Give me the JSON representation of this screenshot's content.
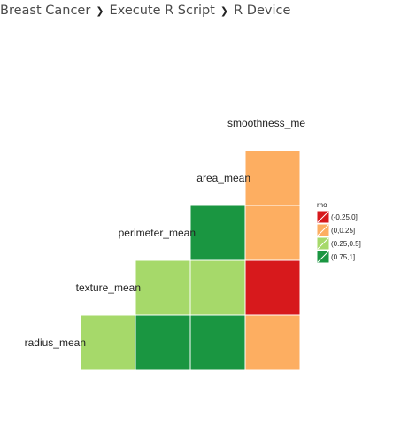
{
  "breadcrumb": {
    "items": [
      "Breast Cancer",
      "Execute R Script",
      "R Device"
    ],
    "separator": "❯"
  },
  "chart_data": {
    "type": "heatmap",
    "variables": [
      "radius_mean",
      "texture_mean",
      "perimeter_mean",
      "area_mean",
      "smoothness_me"
    ],
    "legend": {
      "title": "rho",
      "entries": [
        {
          "label": "(-0.25,0]",
          "color": "#d7191c"
        },
        {
          "label": "(0,0.25]",
          "color": "#fdae61"
        },
        {
          "label": "(0.25,0.5]",
          "color": "#a6d96a"
        },
        {
          "label": "(0.75,1]",
          "color": "#1a9641"
        }
      ]
    },
    "cells": [
      {
        "row": "radius_mean",
        "col": "texture_mean",
        "bin": "(0.25,0.5]"
      },
      {
        "row": "radius_mean",
        "col": "perimeter_mean",
        "bin": "(0.75,1]"
      },
      {
        "row": "radius_mean",
        "col": "area_mean",
        "bin": "(0.75,1]"
      },
      {
        "row": "radius_mean",
        "col": "smoothness_me",
        "bin": "(0,0.25]"
      },
      {
        "row": "texture_mean",
        "col": "perimeter_mean",
        "bin": "(0.25,0.5]"
      },
      {
        "row": "texture_mean",
        "col": "area_mean",
        "bin": "(0.25,0.5]"
      },
      {
        "row": "texture_mean",
        "col": "smoothness_me",
        "bin": "(-0.25,0]"
      },
      {
        "row": "perimeter_mean",
        "col": "area_mean",
        "bin": "(0.75,1]"
      },
      {
        "row": "perimeter_mean",
        "col": "smoothness_me",
        "bin": "(0,0.25]"
      },
      {
        "row": "area_mean",
        "col": "smoothness_me",
        "bin": "(0,0.25]"
      }
    ]
  }
}
